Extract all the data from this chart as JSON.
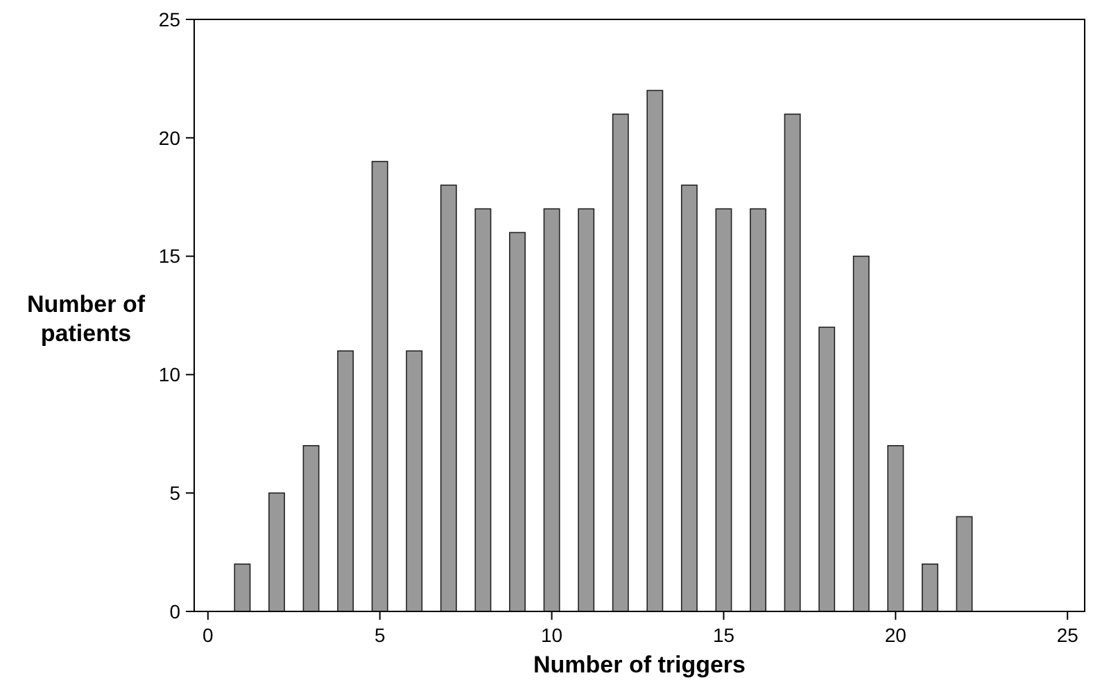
{
  "chart_data": {
    "type": "bar",
    "xlabel": "Number of triggers",
    "ylabel": "Number of patients",
    "x": [
      1,
      2,
      3,
      4,
      5,
      6,
      7,
      8,
      9,
      10,
      11,
      12,
      13,
      14,
      15,
      16,
      17,
      18,
      19,
      20,
      21,
      22
    ],
    "values": [
      2,
      5,
      7,
      11,
      19,
      11,
      18,
      17,
      16,
      17,
      17,
      21,
      22,
      18,
      17,
      17,
      21,
      12,
      15,
      7,
      2,
      4
    ],
    "color": "#999999",
    "xlim": [
      -0.4,
      25.5
    ],
    "xticks": [
      0,
      5,
      10,
      15,
      20,
      25
    ],
    "ylim": [
      0,
      25
    ],
    "yticks": [
      0,
      5,
      10,
      15,
      20,
      25
    ],
    "grid": false
  }
}
